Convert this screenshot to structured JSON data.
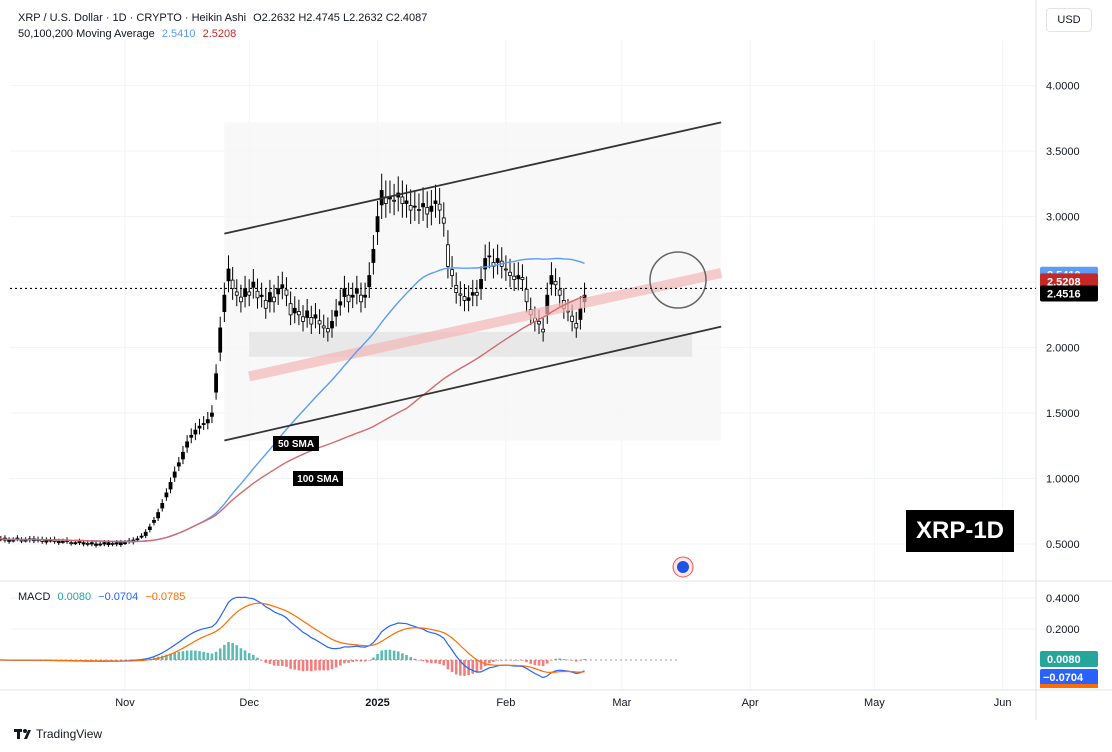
{
  "header": {
    "symbol": "XRP / U.S. Dollar · 1D · CRYPTO · Heikin Ashi",
    "ohlc": "O2.2632  H2.4745  L2.2632  C2.4087",
    "ma_label": "50,100,200 Moving Average",
    "ma_val1": "2.5410",
    "ma_val2": "2.5208",
    "currency": "USD"
  },
  "macd_header": {
    "label": "MACD",
    "v1": "0.0080",
    "v2": "−0.0704",
    "v3": "−0.0785"
  },
  "footer": {
    "brand": "TradingView"
  },
  "badge": "XRP-1D",
  "annotations": {
    "sma50": "50 SMA",
    "sma100": "100 SMA"
  },
  "colors": {
    "ma50": "#5b9cf6",
    "ma100": "#d36b6b",
    "up": "#000000",
    "macd": "#2962ff",
    "signal": "#ff6d00",
    "hist_pos": "#26a69a",
    "hist_neg": "#ef5350"
  },
  "chart_data": [
    {
      "type": "candlestick",
      "title": "XRP / U.S. Dollar · 1D · CRYPTO · Heikin Ashi",
      "x_ticks": [
        "Nov",
        "Dec",
        "2025",
        "Feb",
        "Mar",
        "Apr",
        "May",
        "Jun"
      ],
      "y_ticks": [
        "4.0000",
        "3.5000",
        "3.0000",
        "2.5000",
        "2.0000",
        "1.5000",
        "1.0000",
        "0.5000"
      ],
      "ylim": [
        0.4,
        4.35
      ],
      "price_labels": [
        {
          "text": "2.5410",
          "value": 2.541,
          "color": "#5b9cf6"
        },
        {
          "text": "2.5208",
          "value": 2.5208,
          "color": "#c62828"
        },
        {
          "text": "2.4516",
          "value": 2.4516,
          "color": "#000000"
        }
      ],
      "current_price": 2.4516,
      "closes_start": "2024-10-01",
      "closes": [
        0.54,
        0.54,
        0.53,
        0.53,
        0.53,
        0.54,
        0.53,
        0.53,
        0.53,
        0.54,
        0.53,
        0.52,
        0.53,
        0.53,
        0.52,
        0.52,
        0.52,
        0.52,
        0.51,
        0.51,
        0.51,
        0.51,
        0.5,
        0.5,
        0.5,
        0.5,
        0.5,
        0.51,
        0.5,
        0.5,
        0.51,
        0.51,
        0.52,
        0.53,
        0.54,
        0.56,
        0.59,
        0.63,
        0.68,
        0.74,
        0.81,
        0.89,
        0.97,
        1.05,
        1.12,
        1.2,
        1.28,
        1.33,
        1.37,
        1.4,
        1.42,
        1.45,
        1.5,
        1.8,
        2.15,
        2.4,
        2.6,
        2.45,
        2.4,
        2.35,
        2.45,
        2.4,
        2.5,
        2.38,
        2.4,
        2.3,
        2.42,
        2.35,
        2.45,
        2.48,
        2.4,
        2.25,
        2.3,
        2.25,
        2.2,
        2.28,
        2.18,
        2.25,
        2.18,
        2.15,
        2.12,
        2.2,
        2.28,
        2.35,
        2.45,
        2.35,
        2.4,
        2.45,
        2.35,
        2.4,
        2.55,
        2.75,
        3.0,
        3.2,
        3.1,
        3.15,
        3.12,
        3.18,
        3.1,
        3.12,
        3.05,
        3.08,
        3.05,
        3.1,
        3.02,
        3.08,
        3.12,
        3.05,
        2.95,
        2.62,
        2.55,
        2.42,
        2.4,
        2.36,
        2.38,
        2.42,
        2.4,
        2.52,
        2.68,
        2.7,
        2.62,
        2.68,
        2.62,
        2.6,
        2.55,
        2.52,
        2.55,
        2.52,
        2.35,
        2.25,
        2.2,
        2.18,
        2.12,
        2.4,
        2.55,
        2.48,
        2.4,
        2.3,
        2.28,
        2.2,
        2.15,
        2.3,
        2.4
      ],
      "series": [
        {
          "name": "50 SMA",
          "color": "#5b9cf6"
        },
        {
          "name": "100 SMA",
          "color": "#d36b6b"
        },
        {
          "name": "200 MA",
          "color": "#f4b6b6"
        }
      ],
      "channel_upper": {
        "start": [
          "2024-11-25",
          2.87
        ],
        "end": [
          "2025-03-25",
          3.72
        ]
      },
      "channel_lower": {
        "start": [
          "2024-11-25",
          1.29
        ],
        "end": [
          "2025-03-25",
          2.16
        ]
      }
    },
    {
      "type": "macd",
      "title": "MACD",
      "y_ticks": [
        "0.4000",
        "0.2000"
      ],
      "ylim": [
        -0.16,
        0.46
      ],
      "values": {
        "histogram": 0.008,
        "macd": -0.0704,
        "signal": -0.0785
      },
      "series": [
        {
          "name": "MACD",
          "color": "#2962ff"
        },
        {
          "name": "Signal",
          "color": "#ff6d00"
        },
        {
          "name": "Histogram",
          "color": "#26a69a"
        }
      ]
    }
  ]
}
